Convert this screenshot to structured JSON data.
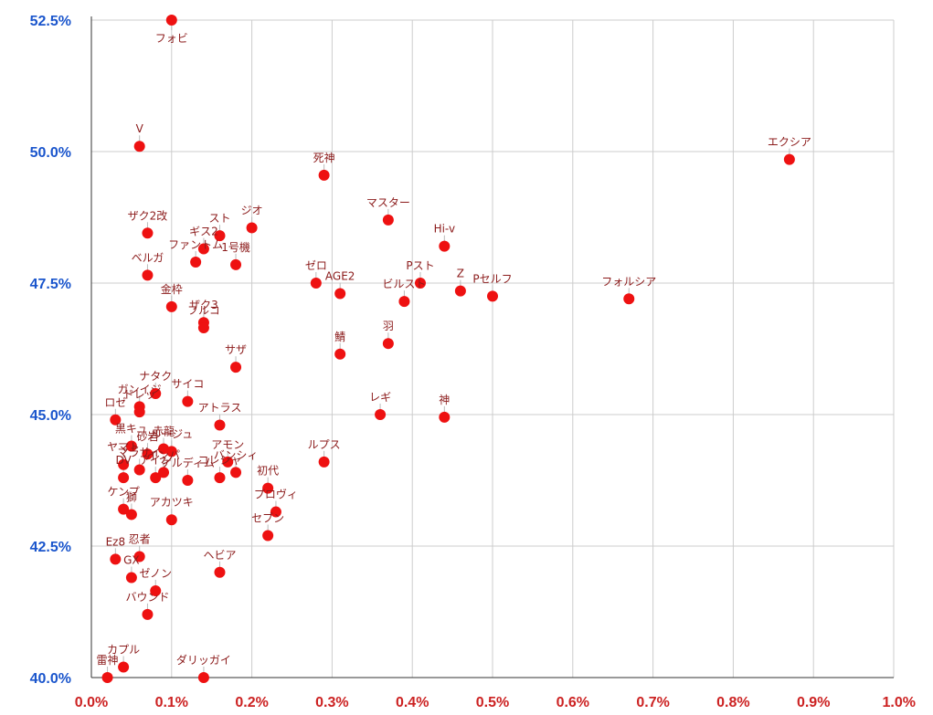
{
  "chart_data": {
    "type": "scatter",
    "title": "",
    "xlabel": "",
    "ylabel": "",
    "xlim": [
      0,
      1.0
    ],
    "ylim": [
      40.0,
      52.5
    ],
    "grid": true,
    "x_ticks": [
      "0.0%",
      "0.1%",
      "0.2%",
      "0.3%",
      "0.4%",
      "0.5%",
      "0.6%",
      "0.7%",
      "0.8%",
      "0.9%",
      "1.0%"
    ],
    "y_ticks": [
      "40.0%",
      "42.5%",
      "45.0%",
      "47.5%",
      "50.0%",
      "52.5%"
    ],
    "colors": {
      "point": "#ee1111",
      "label": "#8b1a1a",
      "x_ticks": "#cc2222",
      "y_ticks": "#1a55cc"
    },
    "points": [
      {
        "label": "フォビ",
        "x": 0.1,
        "y": 52.5
      },
      {
        "label": "V",
        "x": 0.06,
        "y": 50.1
      },
      {
        "label": "エクシア",
        "x": 0.87,
        "y": 49.85
      },
      {
        "label": "死神",
        "x": 0.29,
        "y": 49.55
      },
      {
        "label": "マスター",
        "x": 0.37,
        "y": 48.7
      },
      {
        "label": "ジオ",
        "x": 0.2,
        "y": 48.55
      },
      {
        "label": "ザク2改",
        "x": 0.07,
        "y": 48.45
      },
      {
        "label": "スト",
        "x": 0.16,
        "y": 48.4
      },
      {
        "label": "ギス2",
        "x": 0.14,
        "y": 48.15
      },
      {
        "label": "Hi-v",
        "x": 0.44,
        "y": 48.2
      },
      {
        "label": "ファントム",
        "x": 0.13,
        "y": 47.9
      },
      {
        "label": "1号機",
        "x": 0.18,
        "y": 47.85
      },
      {
        "label": "ベルガ",
        "x": 0.07,
        "y": 47.65
      },
      {
        "label": "ゼロ",
        "x": 0.28,
        "y": 47.5
      },
      {
        "label": "AGE2",
        "x": 0.31,
        "y": 47.3
      },
      {
        "label": "Pスト",
        "x": 0.41,
        "y": 47.5
      },
      {
        "label": "Z",
        "x": 0.46,
        "y": 47.35
      },
      {
        "label": "Pセルフ",
        "x": 0.5,
        "y": 47.25
      },
      {
        "label": "フォルシア",
        "x": 0.67,
        "y": 47.2
      },
      {
        "label": "ビルスト",
        "x": 0.39,
        "y": 47.15
      },
      {
        "label": "金枠",
        "x": 0.1,
        "y": 47.05
      },
      {
        "label": "ザク3",
        "x": 0.14,
        "y": 46.75
      },
      {
        "label": "フルコ",
        "x": 0.14,
        "y": 46.65
      },
      {
        "label": "羽",
        "x": 0.37,
        "y": 46.35
      },
      {
        "label": "鯖",
        "x": 0.31,
        "y": 46.15
      },
      {
        "label": "サザ",
        "x": 0.18,
        "y": 45.9
      },
      {
        "label": "ナタク",
        "x": 0.08,
        "y": 45.4
      },
      {
        "label": "ガンイジ",
        "x": 0.06,
        "y": 45.15
      },
      {
        "label": "サイコ",
        "x": 0.12,
        "y": 45.25
      },
      {
        "label": "ロゼ",
        "x": 0.03,
        "y": 44.9
      },
      {
        "label": "ドレッ",
        "x": 0.06,
        "y": 45.05
      },
      {
        "label": "レギ",
        "x": 0.36,
        "y": 45.0
      },
      {
        "label": "神",
        "x": 0.44,
        "y": 44.95
      },
      {
        "label": "アトラス",
        "x": 0.16,
        "y": 44.8
      },
      {
        "label": "黒キュ",
        "x": 0.05,
        "y": 44.4
      },
      {
        "label": "砂岩",
        "x": 0.07,
        "y": 44.25
      },
      {
        "label": "赤龍",
        "x": 0.09,
        "y": 44.35
      },
      {
        "label": "ルージュ",
        "x": 0.1,
        "y": 44.3
      },
      {
        "label": "アモン",
        "x": 0.17,
        "y": 44.1
      },
      {
        "label": "バンシィ",
        "x": 0.18,
        "y": 43.9
      },
      {
        "label": "ルプス",
        "x": 0.29,
        "y": 44.1
      },
      {
        "label": "ヤマト",
        "x": 0.04,
        "y": 44.05
      },
      {
        "label": "マラサイ",
        "x": 0.06,
        "y": 43.95
      },
      {
        "label": "インパ",
        "x": 0.09,
        "y": 43.9
      },
      {
        "label": "コレシャ",
        "x": 0.16,
        "y": 43.8
      },
      {
        "label": "DV",
        "x": 0.04,
        "y": 43.8
      },
      {
        "label": "アイン",
        "x": 0.08,
        "y": 43.8
      },
      {
        "label": "ケルディム",
        "x": 0.12,
        "y": 43.75
      },
      {
        "label": "初代",
        "x": 0.22,
        "y": 43.6
      },
      {
        "label": "ケンプ",
        "x": 0.04,
        "y": 43.2
      },
      {
        "label": "獅",
        "x": 0.05,
        "y": 43.1
      },
      {
        "label": "アカツキ",
        "x": 0.1,
        "y": 43.0
      },
      {
        "label": "プロヴィ",
        "x": 0.23,
        "y": 43.15
      },
      {
        "label": "セブン",
        "x": 0.22,
        "y": 42.7
      },
      {
        "label": "忍者",
        "x": 0.06,
        "y": 42.3
      },
      {
        "label": "Ez8",
        "x": 0.03,
        "y": 42.25
      },
      {
        "label": "GX",
        "x": 0.05,
        "y": 41.9
      },
      {
        "label": "ヘビア",
        "x": 0.16,
        "y": 42.0
      },
      {
        "label": "ゼノン",
        "x": 0.08,
        "y": 41.65
      },
      {
        "label": "バウンド",
        "x": 0.07,
        "y": 41.2
      },
      {
        "label": "カプル",
        "x": 0.04,
        "y": 40.2
      },
      {
        "label": "雷神",
        "x": 0.02,
        "y": 40.0
      },
      {
        "label": "ダリッガイ",
        "x": 0.14,
        "y": 40.0
      }
    ]
  }
}
